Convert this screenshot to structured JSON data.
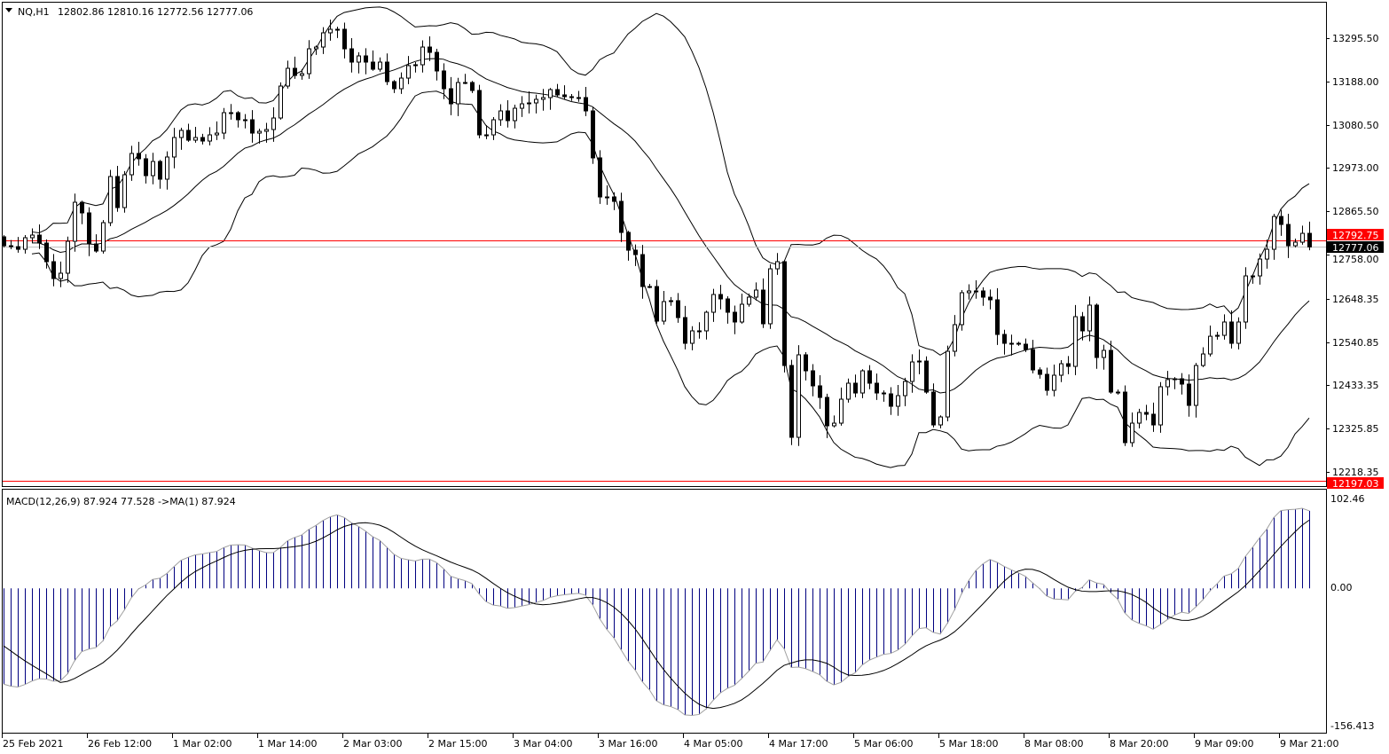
{
  "header": {
    "symbol": "NQ,H1",
    "ohlc": "12802.86 12810.16 12772.56 12777.06"
  },
  "macd_header": "MACD(12,26,9) 87.924 77.528  ->MA(1) 87.924",
  "colors": {
    "bull_body": "#ffffff",
    "bear_body": "#000000",
    "outline": "#000000",
    "bid_line": "#ff0000",
    "ask_line": "#c0c0c0",
    "histogram": "#000080",
    "histogram_outline": "#a0a0a0",
    "signal": "#000000"
  },
  "price_axis": {
    "ticks": [
      "13295.50",
      "13188.00",
      "13080.50",
      "12973.00",
      "12865.50",
      "12758.00",
      "12648.35",
      "12540.85",
      "12433.35",
      "12325.85",
      "12218.35"
    ],
    "bid_label": "12792.75",
    "ask_label": "12777.06",
    "level_label": "12197.03"
  },
  "macd_axis": {
    "top": "102.46",
    "zero": "0.00",
    "bottom": "-156.413"
  },
  "time_axis": [
    "25 Feb 2021",
    "26 Feb 12:00",
    "1 Mar 02:00",
    "1 Mar 14:00",
    "2 Mar 03:00",
    "2 Mar 15:00",
    "3 Mar 04:00",
    "3 Mar 16:00",
    "4 Mar 05:00",
    "4 Mar 17:00",
    "5 Mar 06:00",
    "5 Mar 18:00",
    "8 Mar 08:00",
    "8 Mar 20:00",
    "9 Mar 09:00",
    "9 Mar 21:00"
  ],
  "chart_data": {
    "type": "candlestick",
    "timeframe": "H1",
    "indicators": [
      "Bollinger Bands",
      "MACD(12,26,9)"
    ],
    "ylim": [
      12197.03,
      13400
    ],
    "macd_ylim": [
      -156.413,
      102.46
    ],
    "horizontal_lines": [
      12792.75,
      12777.06,
      12197.03
    ],
    "close": [
      12779.9,
      12777.6,
      12771.1,
      12799.8,
      12806.4,
      12786.6,
      12740.3,
      12698.5,
      12711.7,
      12791.0,
      12887.9,
      12861.5,
      12784.4,
      12766.7,
      12837.2,
      12951.8,
      12874.7,
      12956.2,
      13009.1,
      12995.9,
      12954.0,
      12989.2,
      12945.2,
      13000.3,
      13048.7,
      13066.4,
      13042.1,
      13048.7,
      13039.9,
      13055.3,
      13059.7,
      13110.4,
      13110.4,
      13092.8,
      13092.8,
      13059.7,
      13064.1,
      13068.5,
      13097.2,
      13176.5,
      13220.6,
      13202.9,
      13207.3,
      13269.0,
      13273.4,
      13308.7,
      13317.5,
      13317.5,
      13269.0,
      13236.0,
      13251.4,
      13236.0,
      13218.4,
      13236.0,
      13187.5,
      13169.9,
      13196.3,
      13227.2,
      13229.4,
      13273.4,
      13260.2,
      13214.0,
      13169.9,
      13132.4,
      13185.3,
      13185.3,
      13165.5,
      13055.3,
      13055.3,
      13092.8,
      13114.8,
      13090.6,
      13121.4,
      13132.4,
      13134.6,
      13143.5,
      13147.9,
      13167.7,
      13154.5,
      13150.1,
      13147.9,
      13147.9,
      13114.8,
      12998.1,
      12901.1,
      12901.1,
      12890.1,
      12813.0,
      12768.9,
      12757.9,
      12678.6,
      12678.6,
      12592.7,
      12641.2,
      12643.4,
      12601.5,
      12537.6,
      12568.5,
      12568.5,
      12614.7,
      12658.8,
      12647.8,
      12614.7,
      12590.5,
      12634.6,
      12652.2,
      12669.8,
      12586.1,
      12722.6,
      12740.3,
      12482.5,
      12304.1,
      12509.0,
      12469.3,
      12431.9,
      12403.2,
      12332.7,
      12339.3,
      12398.8,
      12438.5,
      12414.2,
      12469.3,
      12438.5,
      12414.2,
      12412.0,
      12381.2,
      12407.6,
      12442.9,
      12491.3,
      12493.5,
      12416.4,
      12334.9,
      12354.7,
      12517.8,
      12583.9,
      12663.2,
      12667.6,
      12667.6,
      12652.2,
      12645.6,
      12559.6,
      12537.6,
      12537.6,
      12535.4,
      12522.2,
      12471.5,
      12460.5,
      12420.8,
      12458.3,
      12486.9,
      12480.3,
      12603.7,
      12568.5,
      12632.4,
      12502.4,
      12520.0,
      12416.4,
      12416.4,
      12290.9,
      12339.3,
      12365.8,
      12361.4,
      12334.9,
      12429.7,
      12447.5,
      12449.5,
      12436.3,
      12383.4,
      12482.5,
      12511.1,
      12555.1,
      12557.4,
      12590.5,
      12537.6,
      12590.5,
      12705.0,
      12705.0,
      12746.8,
      12771.1,
      12852.6,
      12832.8,
      12779.9,
      12788.7,
      12810.7,
      12777.06
    ],
    "first_open": 12802.0
  }
}
